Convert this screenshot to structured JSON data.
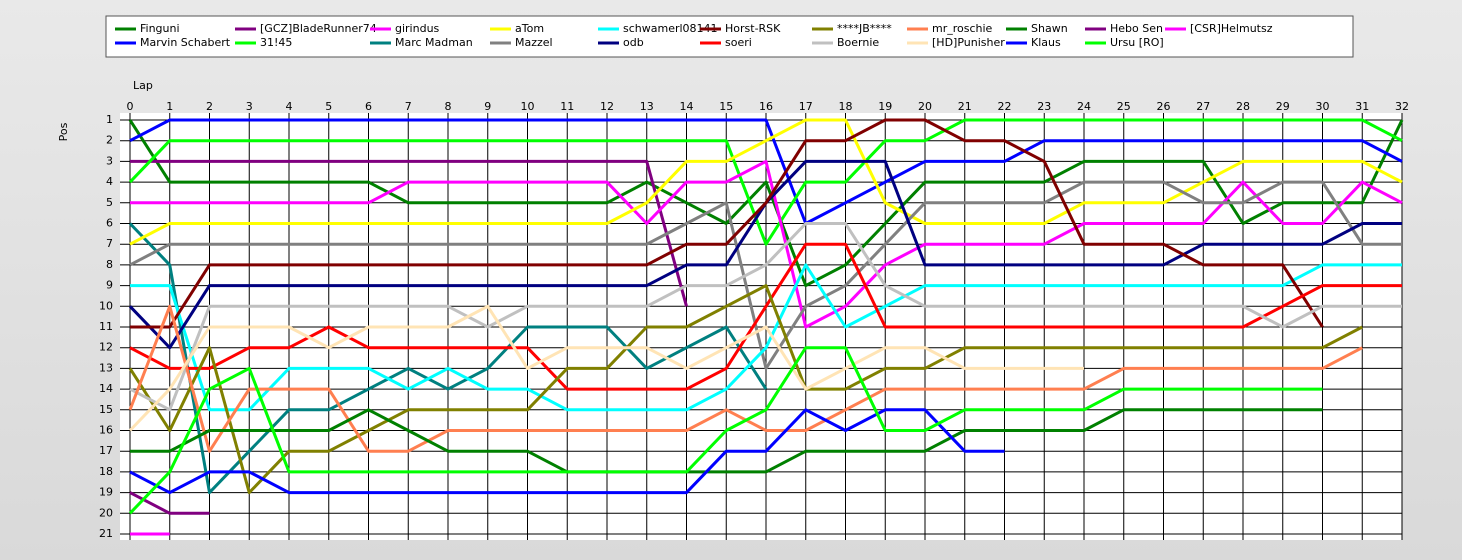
{
  "chart_data": {
    "type": "line",
    "xlabel": "Lap",
    "ylabel": "Pos",
    "x": [
      0,
      1,
      2,
      3,
      4,
      5,
      6,
      7,
      8,
      9,
      10,
      11,
      12,
      13,
      14,
      15,
      16,
      17,
      18,
      19,
      20,
      21,
      22,
      23,
      24,
      25,
      26,
      27,
      28,
      29,
      30,
      31,
      32
    ],
    "xlim": [
      0,
      32
    ],
    "xticks": [
      0,
      1,
      2,
      3,
      4,
      5,
      6,
      7,
      8,
      9,
      10,
      11,
      12,
      13,
      14,
      15,
      16,
      17,
      18,
      19,
      20,
      21,
      22,
      23,
      24,
      25,
      26,
      27,
      28,
      29,
      30,
      31,
      32
    ],
    "ylim": [
      1,
      21
    ],
    "yticks": [
      1,
      2,
      3,
      4,
      5,
      6,
      7,
      8,
      9,
      10,
      11,
      12,
      13,
      14,
      15,
      16,
      17,
      18,
      19,
      20,
      21
    ],
    "y_reversed": true,
    "grid": true,
    "legend": "top",
    "series": [
      {
        "name": "Finguni",
        "color": "#008000",
        "values": [
          1,
          4,
          4,
          4,
          4,
          4,
          4,
          5,
          5,
          5,
          5,
          5,
          5,
          4,
          5,
          6,
          4,
          9,
          8,
          6,
          4,
          4,
          4,
          4,
          3,
          3,
          3,
          3,
          6,
          5,
          5,
          5,
          1
        ]
      },
      {
        "name": "Marvin Schabert",
        "color": "#0000ff",
        "values": [
          2,
          1,
          1,
          1,
          1,
          1,
          1,
          1,
          1,
          1,
          1,
          1,
          1,
          1,
          1,
          1,
          1,
          6,
          5,
          4,
          3,
          3,
          3,
          2,
          2,
          2,
          2,
          2,
          2,
          2,
          2,
          2,
          3
        ]
      },
      {
        "name": "[GCZ]BladeRunner74",
        "color": "#800080",
        "values": [
          3,
          3,
          3,
          3,
          3,
          3,
          3,
          3,
          3,
          3,
          3,
          3,
          3,
          3,
          10,
          null,
          null,
          null,
          null,
          null,
          null,
          null,
          null,
          null,
          null,
          null,
          null,
          null,
          null,
          null,
          null,
          null,
          null
        ]
      },
      {
        "name": "31!45",
        "color": "#00ff00",
        "values": [
          4,
          2,
          2,
          2,
          2,
          2,
          2,
          2,
          2,
          2,
          2,
          2,
          2,
          2,
          2,
          2,
          7,
          4,
          4,
          2,
          2,
          1,
          1,
          1,
          1,
          1,
          1,
          1,
          1,
          1,
          1,
          1,
          2
        ]
      },
      {
        "name": "girindus",
        "color": "#ff00ff",
        "values": [
          5,
          5,
          5,
          5,
          5,
          5,
          5,
          4,
          4,
          4,
          4,
          4,
          4,
          6,
          4,
          4,
          3,
          11,
          10,
          8,
          7,
          7,
          7,
          7,
          6,
          6,
          6,
          6,
          4,
          6,
          6,
          4,
          5
        ]
      },
      {
        "name": "Marc Madman",
        "color": "#008080",
        "values": [
          6,
          8,
          19,
          17,
          15,
          15,
          14,
          13,
          14,
          13,
          11,
          11,
          11,
          13,
          12,
          11,
          14,
          null,
          null,
          null,
          null,
          null,
          null,
          null,
          null,
          null,
          null,
          null,
          null,
          null,
          null,
          null,
          null
        ]
      },
      {
        "name": "aTom",
        "color": "#ffff00",
        "values": [
          7,
          6,
          6,
          6,
          6,
          6,
          6,
          6,
          6,
          6,
          6,
          6,
          6,
          5,
          3,
          3,
          2,
          1,
          1,
          5,
          6,
          6,
          6,
          6,
          5,
          5,
          5,
          4,
          3,
          3,
          3,
          3,
          4
        ]
      },
      {
        "name": "Mazzel",
        "color": "#808080",
        "values": [
          8,
          7,
          7,
          7,
          7,
          7,
          7,
          7,
          7,
          7,
          7,
          7,
          7,
          7,
          6,
          5,
          13,
          10,
          9,
          7,
          5,
          5,
          5,
          5,
          4,
          4,
          4,
          5,
          5,
          4,
          4,
          7,
          7
        ]
      },
      {
        "name": "schwamerl08141",
        "color": "#00ffff",
        "values": [
          9,
          9,
          15,
          15,
          13,
          13,
          13,
          14,
          13,
          14,
          14,
          15,
          15,
          15,
          15,
          14,
          12,
          8,
          11,
          10,
          9,
          9,
          9,
          9,
          9,
          9,
          9,
          9,
          9,
          9,
          8,
          8,
          8
        ]
      },
      {
        "name": "odb",
        "color": "#000080",
        "values": [
          10,
          12,
          9,
          9,
          9,
          9,
          9,
          9,
          9,
          9,
          9,
          9,
          9,
          9,
          8,
          8,
          5,
          3,
          3,
          3,
          8,
          8,
          8,
          8,
          8,
          8,
          8,
          7,
          7,
          7,
          7,
          6,
          6
        ]
      },
      {
        "name": "Horst-RSK",
        "color": "#800000",
        "values": [
          11,
          11,
          8,
          8,
          8,
          8,
          8,
          8,
          8,
          8,
          8,
          8,
          8,
          8,
          7,
          7,
          5,
          2,
          2,
          1,
          1,
          2,
          2,
          3,
          7,
          7,
          7,
          8,
          8,
          8,
          11,
          null,
          null
        ]
      },
      {
        "name": "soeri",
        "color": "#ff0000",
        "values": [
          12,
          13,
          13,
          12,
          12,
          11,
          12,
          12,
          12,
          12,
          12,
          14,
          14,
          14,
          14,
          13,
          10,
          7,
          7,
          11,
          11,
          11,
          11,
          11,
          11,
          11,
          11,
          11,
          11,
          10,
          9,
          9,
          9
        ]
      },
      {
        "name": "****JB****",
        "color": "#808000",
        "values": [
          13,
          16,
          12,
          19,
          17,
          17,
          16,
          15,
          15,
          15,
          15,
          13,
          13,
          11,
          11,
          10,
          9,
          14,
          14,
          13,
          13,
          12,
          12,
          12,
          12,
          12,
          12,
          12,
          12,
          12,
          12,
          11,
          null
        ]
      },
      {
        "name": "Boernie",
        "color": "#c0c0c0",
        "values": [
          14,
          15,
          10,
          10,
          10,
          10,
          10,
          10,
          10,
          11,
          10,
          10,
          10,
          10,
          9,
          9,
          8,
          6,
          6,
          9,
          10,
          10,
          10,
          10,
          10,
          10,
          10,
          10,
          10,
          11,
          10,
          10,
          10
        ]
      },
      {
        "name": "mr_roschie",
        "color": "#ff7f50",
        "values": [
          15,
          10,
          17,
          14,
          14,
          14,
          17,
          17,
          16,
          16,
          16,
          16,
          16,
          16,
          16,
          15,
          16,
          16,
          15,
          14,
          14,
          14,
          14,
          14,
          14,
          13,
          13,
          13,
          13,
          13,
          13,
          12,
          null
        ]
      },
      {
        "name": "[HD]Punisher",
        "color": "#ffe4b5",
        "values": [
          16,
          14,
          11,
          11,
          11,
          12,
          11,
          11,
          11,
          10,
          13,
          12,
          12,
          12,
          13,
          12,
          11,
          14,
          13,
          12,
          12,
          13,
          13,
          13,
          13,
          null,
          null,
          null,
          null,
          null,
          null,
          null,
          null
        ]
      },
      {
        "name": "Shawn",
        "color": "#008000",
        "values": [
          17,
          17,
          16,
          16,
          16,
          16,
          15,
          16,
          17,
          17,
          17,
          18,
          18,
          18,
          18,
          18,
          18,
          17,
          17,
          17,
          17,
          16,
          16,
          16,
          16,
          15,
          15,
          15,
          15,
          15,
          15,
          null,
          null
        ]
      },
      {
        "name": "Klaus",
        "color": "#0000ff",
        "values": [
          18,
          19,
          18,
          18,
          19,
          19,
          19,
          19,
          19,
          19,
          19,
          19,
          19,
          19,
          19,
          17,
          17,
          15,
          16,
          15,
          15,
          17,
          17,
          null,
          null,
          null,
          null,
          null,
          null,
          null,
          null,
          null,
          null
        ]
      },
      {
        "name": "Hebo Sen",
        "color": "#800080",
        "values": [
          19,
          20,
          20,
          null,
          null,
          null,
          null,
          null,
          null,
          null,
          null,
          null,
          null,
          null,
          null,
          null,
          null,
          null,
          null,
          null,
          null,
          null,
          null,
          null,
          null,
          null,
          null,
          null,
          null,
          null,
          null,
          null,
          null
        ]
      },
      {
        "name": "Ursu [RO]",
        "color": "#00ff00",
        "values": [
          20,
          18,
          14,
          13,
          18,
          18,
          18,
          18,
          18,
          18,
          18,
          18,
          18,
          18,
          18,
          16,
          15,
          12,
          12,
          16,
          16,
          15,
          15,
          15,
          15,
          14,
          14,
          14,
          14,
          14,
          14,
          null,
          null
        ]
      },
      {
        "name": "[CSR]Helmutsz",
        "color": "#ff00ff",
        "values": [
          21,
          21,
          null,
          null,
          null,
          null,
          null,
          null,
          null,
          null,
          null,
          null,
          null,
          null,
          null,
          null,
          null,
          null,
          null,
          null,
          null,
          null,
          null,
          null,
          null,
          null,
          null,
          null,
          null,
          null,
          null,
          null,
          null
        ]
      }
    ]
  }
}
